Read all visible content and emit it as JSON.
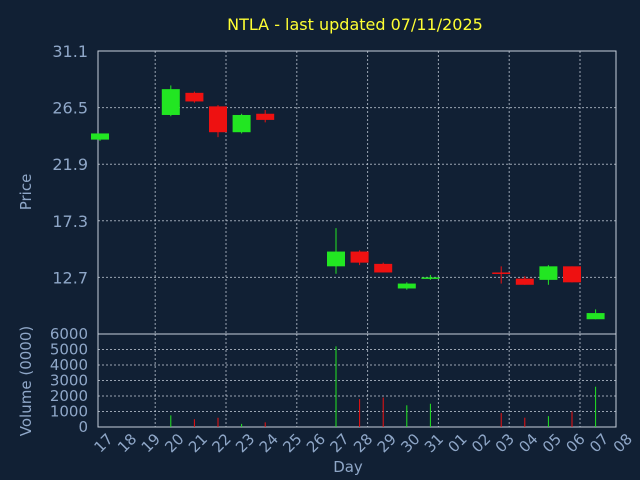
{
  "chart_data": [
    {
      "type": "candlestick",
      "title": "NTLA - last updated 07/11/2025",
      "ylabel": "Price",
      "ylim": [
        8.1,
        31.1
      ],
      "yticks": [
        "31.1",
        "26.5",
        "21.9",
        "17.3",
        "12.7"
      ],
      "grid": true,
      "colors": {
        "up": "#22e622",
        "down": "#ee1111",
        "title": "#ffff33",
        "text": "#8fa7c8",
        "grid": "#c8d0dc",
        "background": "#112034"
      },
      "candles": [
        {
          "day": "17",
          "open": 23.9,
          "high": 24.4,
          "low": 23.8,
          "close": 24.4
        },
        {
          "day": "20",
          "open": 25.9,
          "high": 28.3,
          "low": 25.8,
          "close": 28.0
        },
        {
          "day": "21",
          "open": 27.7,
          "high": 27.8,
          "low": 26.9,
          "close": 27.0
        },
        {
          "day": "22",
          "open": 26.6,
          "high": 26.7,
          "low": 24.1,
          "close": 24.5
        },
        {
          "day": "23",
          "open": 24.5,
          "high": 26.0,
          "low": 24.4,
          "close": 25.9
        },
        {
          "day": "24",
          "open": 26.0,
          "high": 26.3,
          "low": 25.3,
          "close": 25.5
        },
        {
          "day": "27",
          "open": 13.6,
          "high": 16.7,
          "low": 13.0,
          "close": 14.8
        },
        {
          "day": "28",
          "open": 14.8,
          "high": 14.9,
          "low": 13.7,
          "close": 13.9
        },
        {
          "day": "29",
          "open": 13.8,
          "high": 13.9,
          "low": 13.1,
          "close": 13.1
        },
        {
          "day": "30",
          "open": 11.8,
          "high": 12.3,
          "low": 11.7,
          "close": 12.2
        },
        {
          "day": "31",
          "open": 12.6,
          "high": 12.9,
          "low": 12.5,
          "close": 12.7
        },
        {
          "day": "03",
          "open": 13.1,
          "high": 13.6,
          "low": 12.2,
          "close": 13.0
        },
        {
          "day": "04",
          "open": 12.6,
          "high": 12.8,
          "low": 12.1,
          "close": 12.1
        },
        {
          "day": "05",
          "open": 12.5,
          "high": 13.7,
          "low": 12.1,
          "close": 13.6
        },
        {
          "day": "06",
          "open": 13.6,
          "high": 13.6,
          "low": 12.3,
          "close": 12.3
        },
        {
          "day": "07",
          "open": 9.3,
          "high": 10.1,
          "low": 9.3,
          "close": 9.8
        }
      ]
    },
    {
      "type": "bar",
      "ylabel": "Volume (0000)",
      "xlabel": "Day",
      "ylim": [
        0,
        6000
      ],
      "yticks": [
        "6000",
        "5000",
        "4000",
        "3000",
        "2000",
        "1000",
        "0"
      ],
      "categories": [
        "17",
        "18",
        "19",
        "20",
        "21",
        "22",
        "23",
        "24",
        "25",
        "26",
        "27",
        "28",
        "29",
        "30",
        "31",
        "01",
        "02",
        "03",
        "04",
        "05",
        "06",
        "07",
        "08"
      ],
      "values": [
        null,
        null,
        null,
        750,
        500,
        600,
        200,
        300,
        null,
        null,
        5200,
        1800,
        1900,
        1400,
        1500,
        null,
        null,
        900,
        600,
        700,
        1000,
        2600,
        null
      ]
    }
  ]
}
